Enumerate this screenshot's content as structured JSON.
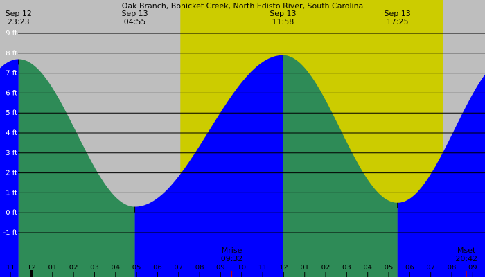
{
  "title": "Oak Branch, Bohicket Creek, North Edisto River, South Carolina",
  "colors": {
    "night": "#bebebe",
    "day": "#cccc00",
    "rising": "#0000ff",
    "falling": "#2e8b57",
    "gridline": "#000000",
    "moon_marker": "#cc0000"
  },
  "chart_data": {
    "type": "area",
    "title": "Oak Branch, Bohicket Creek, North Edisto River, South Carolina",
    "ylabel": "ft",
    "ylim": [
      -1.3,
      9.7
    ],
    "y_ticks": [
      {
        "value": 9,
        "label": "9 ft"
      },
      {
        "value": 8,
        "label": "8 ft"
      },
      {
        "value": 7,
        "label": "7 ft"
      },
      {
        "value": 6,
        "label": "6 ft"
      },
      {
        "value": 5,
        "label": "5 ft"
      },
      {
        "value": 4,
        "label": "4 ft"
      },
      {
        "value": 3,
        "label": "3 ft"
      },
      {
        "value": 2,
        "label": "2 ft"
      },
      {
        "value": 1,
        "label": "1 ft"
      },
      {
        "value": 0,
        "label": "0 ft"
      },
      {
        "value": -1,
        "label": "-1 ft"
      }
    ],
    "x_range_hours": [
      "Sep 12 22:30",
      "Sep 13 21:35"
    ],
    "x_ticks": [
      "11",
      "12",
      "01",
      "02",
      "03",
      "04",
      "05",
      "06",
      "07",
      "08",
      "09",
      "10",
      "11",
      "12",
      "01",
      "02",
      "03",
      "04",
      "05",
      "06",
      "07",
      "08",
      "09"
    ],
    "tide_extremes": [
      {
        "date": "Sep 12",
        "time": "23:23",
        "type": "high",
        "height_ft": 7.7
      },
      {
        "date": "Sep 13",
        "time": "04:55",
        "type": "low",
        "height_ft": 0.3
      },
      {
        "date": "Sep 13",
        "time": "11:58",
        "type": "high",
        "height_ft": 7.9
      },
      {
        "date": "Sep 13",
        "time": "17:25",
        "type": "low",
        "height_ft": 0.5
      }
    ],
    "daylight": {
      "start": "Sep 13 07:05",
      "end": "Sep 13 19:35"
    },
    "moon_events": [
      {
        "label": "Mrise",
        "time": "09:32"
      },
      {
        "label": "Mset",
        "time": "20:42"
      }
    ]
  }
}
